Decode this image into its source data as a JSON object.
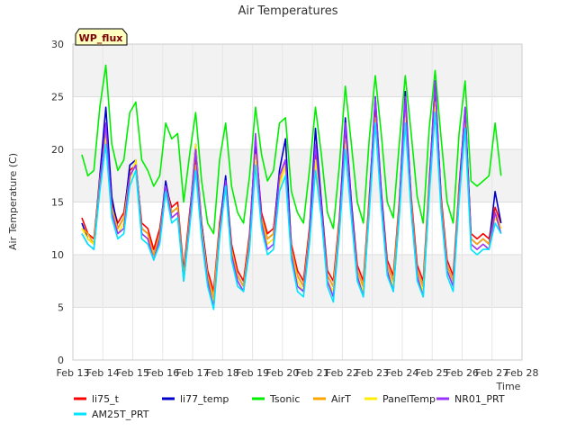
{
  "chart_data": {
    "type": "line",
    "title": "Air Temperatures",
    "xlabel": "Time",
    "ylabel": "Air Temperature (C)",
    "tag_label": "WP_flux",
    "ylim": [
      0,
      30
    ],
    "yticks": [
      0,
      5,
      10,
      15,
      20,
      25,
      30
    ],
    "xlim": [
      13,
      28
    ],
    "xticks": [
      13,
      14,
      15,
      16,
      17,
      18,
      19,
      20,
      21,
      22,
      23,
      24,
      25,
      26,
      27,
      28
    ],
    "xtick_labels": [
      "Feb 13",
      "Feb 14",
      "Feb 15",
      "Feb 16",
      "Feb 17",
      "Feb 18",
      "Feb 19",
      "Feb 20",
      "Feb 21",
      "Feb 22",
      "Feb 23",
      "Feb 24",
      "Feb 25",
      "Feb 26",
      "Feb 27",
      "Feb 28"
    ],
    "grid": true,
    "legend_position": "bottom",
    "x": [
      13.3,
      13.5,
      13.7,
      13.9,
      14.1,
      14.3,
      14.5,
      14.7,
      14.9,
      15.1,
      15.3,
      15.5,
      15.7,
      15.9,
      16.1,
      16.3,
      16.5,
      16.7,
      16.9,
      17.1,
      17.3,
      17.5,
      17.7,
      17.9,
      18.1,
      18.3,
      18.5,
      18.7,
      18.9,
      19.1,
      19.3,
      19.5,
      19.7,
      19.9,
      20.1,
      20.3,
      20.5,
      20.7,
      20.9,
      21.1,
      21.3,
      21.5,
      21.7,
      21.9,
      22.1,
      22.3,
      22.5,
      22.7,
      22.9,
      23.1,
      23.3,
      23.5,
      23.7,
      23.9,
      24.1,
      24.3,
      24.5,
      24.7,
      24.9,
      25.1,
      25.3,
      25.5,
      25.7,
      25.9,
      26.1,
      26.3,
      26.5,
      26.7,
      26.9,
      27.1,
      27.3
    ],
    "series": [
      {
        "name": "li75_t",
        "color": "#ff0000",
        "values": [
          13.5,
          12.0,
          11.5,
          17.0,
          22.5,
          15.0,
          13.0,
          14.0,
          18.0,
          18.5,
          13.0,
          12.5,
          10.5,
          12.5,
          16.5,
          14.5,
          15.0,
          8.5,
          14.0,
          19.0,
          13.0,
          8.5,
          6.5,
          13.0,
          17.0,
          11.0,
          8.5,
          7.5,
          12.0,
          20.5,
          14.0,
          12.0,
          12.5,
          17.5,
          19.0,
          11.0,
          8.5,
          7.5,
          12.5,
          19.5,
          15.0,
          8.5,
          7.5,
          13.5,
          22.0,
          15.0,
          9.0,
          7.5,
          15.5,
          24.0,
          16.0,
          9.5,
          8.0,
          15.0,
          24.0,
          15.5,
          9.0,
          7.5,
          17.0,
          25.5,
          15.5,
          9.5,
          8.0,
          16.5,
          23.5,
          12.0,
          11.5,
          12.0,
          11.5,
          14.5,
          13.0
        ]
      },
      {
        "name": "li77_temp",
        "color": "#0000cc",
        "values": [
          13.0,
          11.5,
          11.0,
          17.5,
          24.0,
          15.5,
          12.5,
          13.5,
          18.5,
          19.0,
          12.5,
          12.0,
          10.0,
          12.0,
          17.0,
          14.0,
          14.5,
          8.0,
          13.5,
          20.5,
          13.0,
          8.0,
          5.5,
          12.5,
          17.5,
          10.5,
          8.0,
          7.0,
          11.5,
          21.0,
          13.5,
          11.5,
          12.0,
          18.0,
          21.0,
          10.5,
          8.0,
          7.0,
          12.0,
          22.0,
          15.0,
          8.0,
          7.0,
          13.0,
          23.0,
          15.0,
          8.5,
          7.0,
          15.0,
          25.0,
          16.0,
          9.0,
          7.5,
          14.5,
          25.5,
          15.0,
          8.5,
          7.0,
          16.5,
          26.5,
          15.0,
          9.0,
          7.5,
          16.0,
          24.0,
          11.5,
          11.0,
          11.5,
          11.0,
          16.0,
          13.0
        ]
      },
      {
        "name": "Tsonic",
        "color": "#00ee00",
        "values": [
          19.5,
          17.5,
          18.0,
          24.0,
          28.0,
          20.5,
          18.0,
          19.0,
          23.5,
          24.5,
          19.0,
          18.0,
          16.5,
          17.5,
          22.5,
          21.0,
          21.5,
          15.0,
          19.5,
          23.5,
          17.0,
          13.0,
          12.0,
          19.0,
          22.5,
          16.5,
          14.0,
          13.0,
          17.5,
          24.0,
          19.5,
          17.0,
          18.0,
          22.5,
          23.0,
          16.0,
          14.0,
          13.0,
          18.0,
          24.0,
          19.5,
          14.0,
          12.5,
          18.5,
          26.0,
          20.5,
          15.0,
          13.0,
          21.0,
          27.0,
          21.5,
          15.0,
          13.5,
          20.5,
          27.0,
          21.5,
          15.5,
          13.0,
          22.0,
          27.5,
          21.0,
          15.0,
          13.0,
          21.5,
          26.5,
          17.0,
          16.5,
          17.0,
          17.5,
          22.5,
          17.5
        ]
      },
      {
        "name": "AirT",
        "color": "#ffa500",
        "values": [
          12.5,
          12.0,
          11.0,
          17.0,
          21.5,
          14.5,
          12.5,
          13.5,
          17.5,
          18.5,
          12.5,
          12.0,
          10.0,
          12.0,
          16.5,
          14.0,
          14.5,
          8.0,
          13.5,
          18.5,
          12.5,
          8.0,
          6.0,
          12.5,
          16.5,
          10.5,
          8.0,
          7.0,
          11.5,
          19.5,
          13.5,
          11.5,
          12.0,
          17.0,
          18.5,
          10.5,
          8.0,
          7.0,
          12.0,
          19.0,
          14.5,
          8.0,
          7.0,
          13.0,
          21.0,
          14.5,
          8.5,
          7.0,
          15.0,
          23.0,
          15.5,
          9.0,
          7.5,
          14.5,
          23.5,
          15.0,
          8.5,
          7.0,
          16.5,
          24.5,
          15.0,
          9.0,
          7.5,
          16.0,
          22.5,
          11.5,
          11.0,
          11.5,
          11.0,
          14.0,
          12.5
        ]
      },
      {
        "name": "PanelTemp",
        "color": "#ffee00",
        "values": [
          12.5,
          11.5,
          11.0,
          16.5,
          21.0,
          14.0,
          12.0,
          13.0,
          17.0,
          19.0,
          12.0,
          11.5,
          9.5,
          11.5,
          16.0,
          13.5,
          14.0,
          7.5,
          13.0,
          20.5,
          12.5,
          7.5,
          5.5,
          12.0,
          16.5,
          10.0,
          7.5,
          6.5,
          11.0,
          19.0,
          13.0,
          11.0,
          11.5,
          16.5,
          18.5,
          10.0,
          7.5,
          6.5,
          11.5,
          19.0,
          14.0,
          7.5,
          6.5,
          12.5,
          20.5,
          14.0,
          8.0,
          6.5,
          14.5,
          22.5,
          15.0,
          8.5,
          7.0,
          14.0,
          23.0,
          14.5,
          8.0,
          6.5,
          16.0,
          24.0,
          14.5,
          8.5,
          7.0,
          15.5,
          22.0,
          11.0,
          10.5,
          11.0,
          10.5,
          13.5,
          12.5
        ]
      },
      {
        "name": "NR01_PRT",
        "color": "#9933ff",
        "values": [
          12.0,
          11.0,
          10.5,
          16.5,
          22.5,
          14.0,
          12.0,
          12.5,
          17.5,
          18.5,
          12.0,
          11.5,
          9.5,
          11.5,
          16.5,
          13.5,
          14.0,
          7.5,
          13.0,
          20.0,
          12.0,
          7.5,
          5.0,
          12.0,
          17.0,
          10.0,
          7.5,
          6.5,
          11.0,
          21.5,
          13.0,
          10.5,
          11.0,
          17.5,
          19.0,
          10.0,
          7.0,
          6.5,
          11.5,
          20.5,
          14.5,
          7.5,
          6.0,
          12.5,
          22.5,
          14.5,
          8.0,
          6.0,
          14.5,
          25.0,
          15.5,
          8.5,
          6.5,
          14.0,
          25.0,
          14.5,
          8.0,
          6.0,
          16.0,
          26.5,
          14.5,
          8.5,
          7.0,
          15.5,
          24.0,
          11.0,
          10.5,
          11.0,
          10.5,
          14.0,
          12.0
        ]
      },
      {
        "name": "AM25T_PRT",
        "color": "#00e5ff",
        "values": [
          12.0,
          11.0,
          10.5,
          16.0,
          20.5,
          13.5,
          11.5,
          12.0,
          16.5,
          18.0,
          11.5,
          11.0,
          9.5,
          11.0,
          16.0,
          13.0,
          13.5,
          7.5,
          12.5,
          18.0,
          11.5,
          7.0,
          4.8,
          11.5,
          16.5,
          9.5,
          7.0,
          6.5,
          10.5,
          18.5,
          12.5,
          10.0,
          10.5,
          16.0,
          17.5,
          9.5,
          6.5,
          6.0,
          11.0,
          18.0,
          13.5,
          7.0,
          5.5,
          12.0,
          20.0,
          13.5,
          7.5,
          6.0,
          14.0,
          22.5,
          14.5,
          8.0,
          6.5,
          13.5,
          22.5,
          14.0,
          7.5,
          6.0,
          15.5,
          23.5,
          14.0,
          8.0,
          6.5,
          15.0,
          22.0,
          10.5,
          10.0,
          10.5,
          10.5,
          13.0,
          12.0
        ]
      }
    ]
  }
}
